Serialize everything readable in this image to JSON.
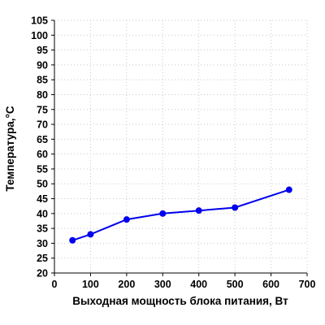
{
  "chart_data": {
    "type": "line",
    "title": "",
    "xlabel": "Выходная мощность блока питания, Вт",
    "ylabel": "Температура,°С",
    "xlim": [
      0,
      700
    ],
    "ylim": [
      20,
      105
    ],
    "xticks": [
      0,
      100,
      200,
      300,
      400,
      500,
      600,
      700
    ],
    "yticks": [
      20,
      25,
      30,
      35,
      40,
      45,
      50,
      55,
      60,
      65,
      70,
      75,
      80,
      85,
      90,
      95,
      100,
      105
    ],
    "grid": true,
    "series": [
      {
        "color": "#0000ee",
        "x": [
          50,
          100,
          200,
          300,
          400,
          500,
          650
        ],
        "y": [
          31,
          33,
          38,
          40,
          41,
          42,
          48
        ]
      }
    ]
  }
}
